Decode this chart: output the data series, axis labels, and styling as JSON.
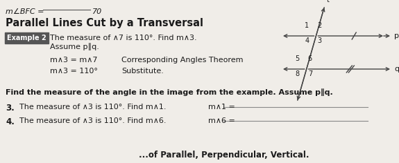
{
  "bg_color": "#f0ede8",
  "top_text_left": "m∠BFC = ",
  "top_text_line": true,
  "top_text_val": "70",
  "title": "Parallel Lines Cut by a Transversal",
  "example_label": "Example 2",
  "example_text": "The measure of ∧7 is 110°. Find m∧3.",
  "assume_text": "Assume p∥q.",
  "step1_left": "m∧3 = m∧7",
  "step1_right": "Corresponding Angles Theorem",
  "step2_left": "m∧3 = 110°",
  "step2_right": "Substitute.",
  "find_text": "Find the measure of the angle in the image from the example. Assume p∥q.",
  "q3_num": "3.",
  "q3_text": "The measure of ∧3 is 110°. Find m∧1.",
  "q3_ans_label": "m∧1 = ",
  "q4_num": "4.",
  "q4_text": "The measure of ∧3 is 110°. Find m∧6.",
  "q4_ans_label": "m∧6 = ",
  "bottom_text": "...of Parallel, Perpendicular, Vertical.",
  "text_color": "#1a1a1a",
  "line_color": "#444444",
  "underline_color": "#888888"
}
